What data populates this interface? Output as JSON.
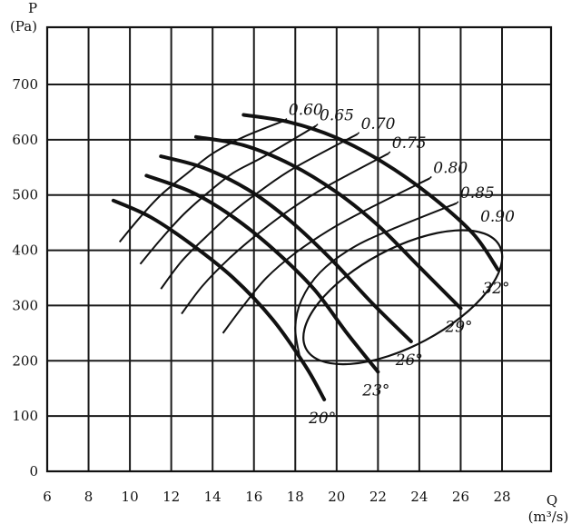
{
  "chart_data": {
    "type": "line",
    "title": "",
    "xlabel": "Q",
    "xunit": "(m³/s)",
    "ylabel": "P",
    "yunit": "(Pa)",
    "xlim": [
      6,
      30
    ],
    "ylim": [
      0,
      800
    ],
    "x_ticks": [
      "6",
      "8",
      "10",
      "12",
      "14",
      "16",
      "18",
      "20",
      "22",
      "24",
      "26",
      "28"
    ],
    "y_ticks": [
      "0",
      "100",
      "200",
      "300",
      "400",
      "500",
      "600",
      "700"
    ],
    "grid": true,
    "angle_curves": [
      {
        "label": "20°",
        "points": [
          [
            9.2,
            490
          ],
          [
            11.0,
            460
          ],
          [
            13.0,
            410
          ],
          [
            15.0,
            350
          ],
          [
            16.9,
            275
          ],
          [
            18.5,
            190
          ],
          [
            19.4,
            130
          ]
        ]
      },
      {
        "label": "23°",
        "points": [
          [
            10.8,
            535
          ],
          [
            13.0,
            505
          ],
          [
            15.0,
            460
          ],
          [
            17.0,
            400
          ],
          [
            18.9,
            330
          ],
          [
            20.5,
            250
          ],
          [
            22.0,
            180
          ]
        ]
      },
      {
        "label": "26°",
        "points": [
          [
            11.5,
            570
          ],
          [
            13.5,
            550
          ],
          [
            15.7,
            510
          ],
          [
            17.7,
            455
          ],
          [
            19.7,
            385
          ],
          [
            21.7,
            305
          ],
          [
            23.6,
            235
          ]
        ]
      },
      {
        "label": "29°",
        "points": [
          [
            13.2,
            605
          ],
          [
            15.5,
            590
          ],
          [
            17.8,
            555
          ],
          [
            20.0,
            505
          ],
          [
            22.0,
            445
          ],
          [
            24.0,
            370
          ],
          [
            26.0,
            295
          ]
        ]
      },
      {
        "label": "32°",
        "points": [
          [
            15.5,
            645
          ],
          [
            17.7,
            632
          ],
          [
            19.9,
            605
          ],
          [
            22.2,
            560
          ],
          [
            24.5,
            500
          ],
          [
            26.6,
            430
          ],
          [
            27.8,
            365
          ]
        ]
      }
    ],
    "efficiency_curves": [
      {
        "label": "0.60",
        "points": [
          [
            9.5,
            415
          ],
          [
            10.5,
            460
          ],
          [
            11.5,
            500
          ],
          [
            12.8,
            540
          ],
          [
            14.0,
            575
          ],
          [
            15.5,
            605
          ],
          [
            17.5,
            635
          ]
        ]
      },
      {
        "label": "0.65",
        "points": [
          [
            10.5,
            375
          ],
          [
            11.5,
            420
          ],
          [
            12.6,
            465
          ],
          [
            13.8,
            505
          ],
          [
            15.0,
            540
          ],
          [
            16.5,
            570
          ],
          [
            19.0,
            625
          ]
        ]
      },
      {
        "label": "0.70",
        "points": [
          [
            11.5,
            330
          ],
          [
            12.5,
            380
          ],
          [
            13.7,
            425
          ],
          [
            15.0,
            470
          ],
          [
            16.4,
            510
          ],
          [
            18.0,
            550
          ],
          [
            21.0,
            610
          ]
        ]
      },
      {
        "label": "0.75",
        "points": [
          [
            12.5,
            285
          ],
          [
            13.5,
            335
          ],
          [
            14.8,
            385
          ],
          [
            16.2,
            430
          ],
          [
            17.8,
            475
          ],
          [
            19.5,
            515
          ],
          [
            22.5,
            575
          ]
        ]
      },
      {
        "label": "0.80",
        "points": [
          [
            14.5,
            250
          ],
          [
            15.5,
            300
          ],
          [
            16.6,
            350
          ],
          [
            18.0,
            395
          ],
          [
            19.8,
            440
          ],
          [
            21.8,
            480
          ],
          [
            24.5,
            530
          ]
        ]
      },
      {
        "label": "0.85",
        "points": [
          [
            18.2,
            210
          ],
          [
            18.0,
            260
          ],
          [
            18.3,
            310
          ],
          [
            19.2,
            360
          ],
          [
            20.8,
            405
          ],
          [
            22.8,
            440
          ],
          [
            25.8,
            485
          ]
        ]
      },
      {
        "label": "0.90",
        "ellipse": {
          "cx": 23.2,
          "cy": 315,
          "rx": 5.3,
          "ry": 88,
          "rotate": -28
        }
      }
    ],
    "tick_font": "serif"
  }
}
